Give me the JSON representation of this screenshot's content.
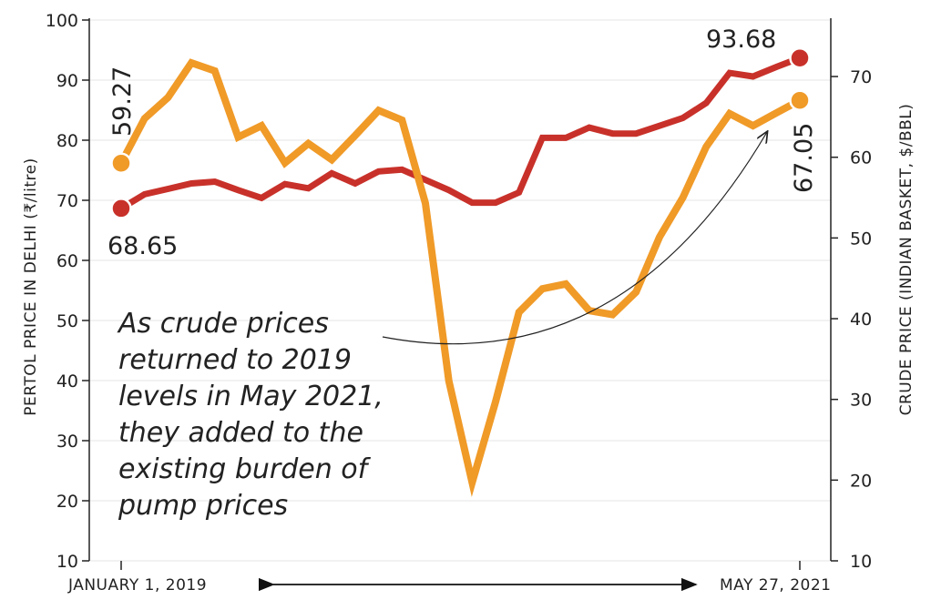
{
  "chart_data": {
    "type": "line",
    "left_axis": {
      "label": "PERTOL PRICE IN DELHI (₹/litre)",
      "ticks": [
        "10",
        "20",
        "30",
        "40",
        "50",
        "60",
        "70",
        "80",
        "90",
        "100"
      ],
      "ylim": [
        10,
        100
      ]
    },
    "right_axis": {
      "label": "CRUDE PRICE (INDIAN BASKET, $/BBL)",
      "ticks": [
        "10",
        "20",
        "30",
        "40",
        "50",
        "60",
        "70"
      ],
      "ylim": [
        10,
        77
      ]
    },
    "x_start_label": "JANUARY 1, 2019",
    "x_end_label": "MAY 27, 2021",
    "series": [
      {
        "axis": "left",
        "color": "#c8312a",
        "start_label": "68.65",
        "end_label": "93.68",
        "values": [
          68.65,
          71.0,
          71.9,
          72.8,
          73.1,
          71.7,
          70.4,
          72.7,
          72.0,
          74.5,
          72.8,
          74.8,
          75.1,
          73.4,
          71.7,
          69.6,
          69.6,
          71.3,
          80.4,
          80.4,
          82.1,
          81.1,
          81.1,
          82.4,
          83.7,
          86.2,
          91.2,
          90.6,
          92.2,
          93.68
        ]
      },
      {
        "axis": "right",
        "color": "#f09a28",
        "start_label": "59.27",
        "end_label": "67.05",
        "values": [
          59.27,
          64.8,
          67.4,
          71.7,
          70.7,
          62.5,
          63.9,
          59.3,
          61.7,
          59.7,
          62.7,
          65.8,
          64.6,
          54.3,
          32.3,
          19.7,
          29.7,
          40.8,
          43.7,
          44.3,
          41.0,
          40.5,
          43.3,
          50.1,
          55.0,
          61.3,
          65.4,
          63.9,
          65.5,
          67.05
        ]
      }
    ],
    "annotation": [
      "As crude prices",
      "returned to 2019",
      "levels in May 2021,",
      "they added to the",
      "existing burden of",
      "pump prices"
    ]
  }
}
